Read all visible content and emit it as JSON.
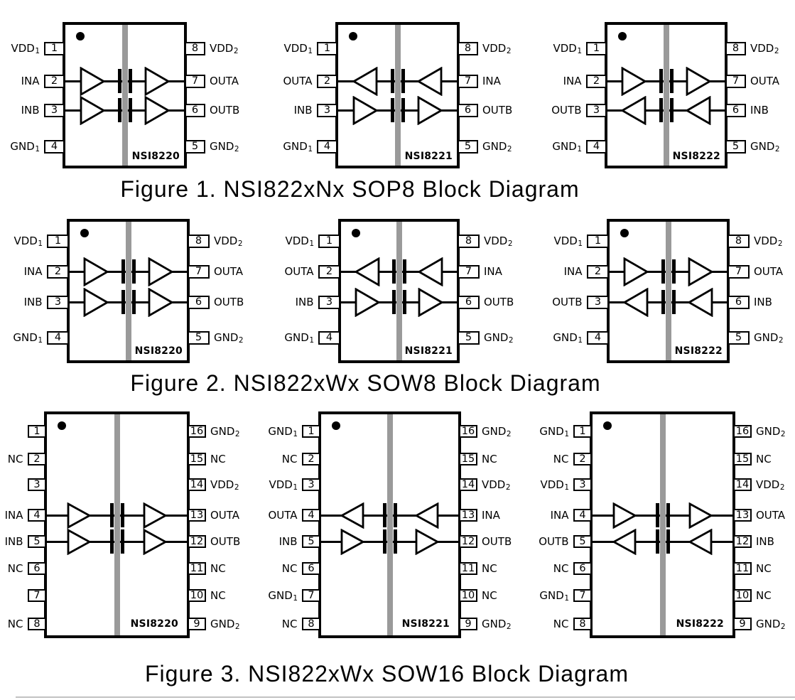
{
  "colors": {
    "line": "#000000",
    "barrier": "#9a9a9a",
    "faint_rule": "#c2c2c2",
    "background": "#ffffff"
  },
  "figures": [
    {
      "caption": "Figure 1. NSI822xNx SOP8 Block Diagram",
      "chips": [
        {
          "name": "NSI8220",
          "left_pins": [
            {
              "label": "VDD",
              "sub": "1",
              "num": "1"
            },
            {
              "label": "INA",
              "sub": "",
              "num": "2"
            },
            {
              "label": "INB",
              "sub": "",
              "num": "3"
            },
            {
              "label": "GND",
              "sub": "1",
              "num": "4"
            }
          ],
          "right_pins": [
            {
              "label": "VDD",
              "sub": "2",
              "num": "8"
            },
            {
              "label": "OUTA",
              "sub": "",
              "num": "7"
            },
            {
              "label": "OUTB",
              "sub": "",
              "num": "6"
            },
            {
              "label": "GND",
              "sub": "2",
              "num": "5"
            }
          ],
          "channels": [
            "right",
            "right"
          ]
        },
        {
          "name": "NSI8221",
          "left_pins": [
            {
              "label": "VDD",
              "sub": "1",
              "num": "1"
            },
            {
              "label": "OUTA",
              "sub": "",
              "num": "2"
            },
            {
              "label": "INB",
              "sub": "",
              "num": "3"
            },
            {
              "label": "GND",
              "sub": "1",
              "num": "4"
            }
          ],
          "right_pins": [
            {
              "label": "VDD",
              "sub": "2",
              "num": "8"
            },
            {
              "label": "INA",
              "sub": "",
              "num": "7"
            },
            {
              "label": "OUTB",
              "sub": "",
              "num": "6"
            },
            {
              "label": "GND",
              "sub": "2",
              "num": "5"
            }
          ],
          "channels": [
            "left",
            "right"
          ]
        },
        {
          "name": "NSI8222",
          "left_pins": [
            {
              "label": "VDD",
              "sub": "1",
              "num": "1"
            },
            {
              "label": "INA",
              "sub": "",
              "num": "2"
            },
            {
              "label": "OUTB",
              "sub": "",
              "num": "3"
            },
            {
              "label": "GND",
              "sub": "1",
              "num": "4"
            }
          ],
          "right_pins": [
            {
              "label": "VDD",
              "sub": "2",
              "num": "8"
            },
            {
              "label": "OUTA",
              "sub": "",
              "num": "7"
            },
            {
              "label": "INB",
              "sub": "",
              "num": "6"
            },
            {
              "label": "GND",
              "sub": "2",
              "num": "5"
            }
          ],
          "channels": [
            "right",
            "left"
          ]
        }
      ]
    },
    {
      "caption": "Figure 2. NSI822xWx SOW8 Block Diagram",
      "chips": [
        {
          "name": "NSI8220",
          "left_pins": [
            {
              "label": "VDD",
              "sub": "1",
              "num": "1"
            },
            {
              "label": "INA",
              "sub": "",
              "num": "2"
            },
            {
              "label": "INB",
              "sub": "",
              "num": "3"
            },
            {
              "label": "GND",
              "sub": "1",
              "num": "4"
            }
          ],
          "right_pins": [
            {
              "label": "VDD",
              "sub": "2",
              "num": "8"
            },
            {
              "label": "OUTA",
              "sub": "",
              "num": "7"
            },
            {
              "label": "OUTB",
              "sub": "",
              "num": "6"
            },
            {
              "label": "GND",
              "sub": "2",
              "num": "5"
            }
          ],
          "channels": [
            "right",
            "right"
          ]
        },
        {
          "name": "NSI8221",
          "left_pins": [
            {
              "label": "VDD",
              "sub": "1",
              "num": "1"
            },
            {
              "label": "OUTA",
              "sub": "",
              "num": "2"
            },
            {
              "label": "INB",
              "sub": "",
              "num": "3"
            },
            {
              "label": "GND",
              "sub": "1",
              "num": "4"
            }
          ],
          "right_pins": [
            {
              "label": "VDD",
              "sub": "2",
              "num": "8"
            },
            {
              "label": "INA",
              "sub": "",
              "num": "7"
            },
            {
              "label": "OUTB",
              "sub": "",
              "num": "6"
            },
            {
              "label": "GND",
              "sub": "2",
              "num": "5"
            }
          ],
          "channels": [
            "left",
            "right"
          ]
        },
        {
          "name": "NSI8222",
          "left_pins": [
            {
              "label": "VDD",
              "sub": "1",
              "num": "1"
            },
            {
              "label": "INA",
              "sub": "",
              "num": "2"
            },
            {
              "label": "OUTB",
              "sub": "",
              "num": "3"
            },
            {
              "label": "GND",
              "sub": "1",
              "num": "4"
            }
          ],
          "right_pins": [
            {
              "label": "VDD",
              "sub": "2",
              "num": "8"
            },
            {
              "label": "OUTA",
              "sub": "",
              "num": "7"
            },
            {
              "label": "INB",
              "sub": "",
              "num": "6"
            },
            {
              "label": "GND",
              "sub": "2",
              "num": "5"
            }
          ],
          "channels": [
            "right",
            "left"
          ]
        }
      ]
    },
    {
      "caption": "Figure 3. NSI822xWx SOW16 Block Diagram",
      "chips": [
        {
          "name": "NSI8220",
          "left_pins": [
            {
              "label": "",
              "sub": "",
              "num": "1"
            },
            {
              "label": "NC",
              "sub": "",
              "num": "2"
            },
            {
              "label": "",
              "sub": "",
              "num": "3"
            },
            {
              "label": "INA",
              "sub": "",
              "num": "4"
            },
            {
              "label": "INB",
              "sub": "",
              "num": "5"
            },
            {
              "label": "NC",
              "sub": "",
              "num": "6"
            },
            {
              "label": "",
              "sub": "",
              "num": "7"
            },
            {
              "label": "NC",
              "sub": "",
              "num": "8"
            }
          ],
          "right_pins": [
            {
              "label": "GND",
              "sub": "2",
              "num": "16"
            },
            {
              "label": "NC",
              "sub": "",
              "num": "15"
            },
            {
              "label": "VDD",
              "sub": "2",
              "num": "14"
            },
            {
              "label": "OUTA",
              "sub": "",
              "num": "13"
            },
            {
              "label": "OUTB",
              "sub": "",
              "num": "12"
            },
            {
              "label": "NC",
              "sub": "",
              "num": "11"
            },
            {
              "label": "NC",
              "sub": "",
              "num": "10"
            },
            {
              "label": "GND",
              "sub": "2",
              "num": "9"
            }
          ],
          "channels": [
            "right",
            "right"
          ]
        },
        {
          "name": "NSI8221",
          "left_pins": [
            {
              "label": "GND",
              "sub": "1",
              "num": "1"
            },
            {
              "label": "NC",
              "sub": "",
              "num": "2"
            },
            {
              "label": "VDD",
              "sub": "1",
              "num": "3"
            },
            {
              "label": "OUTA",
              "sub": "",
              "num": "4"
            },
            {
              "label": "INB",
              "sub": "",
              "num": "5"
            },
            {
              "label": "NC",
              "sub": "",
              "num": "6"
            },
            {
              "label": "GND",
              "sub": "1",
              "num": "7"
            },
            {
              "label": "NC",
              "sub": "",
              "num": "8"
            }
          ],
          "right_pins": [
            {
              "label": "GND",
              "sub": "2",
              "num": "16"
            },
            {
              "label": "NC",
              "sub": "",
              "num": "15"
            },
            {
              "label": "VDD",
              "sub": "2",
              "num": "14"
            },
            {
              "label": "INA",
              "sub": "",
              "num": "13"
            },
            {
              "label": "OUTB",
              "sub": "",
              "num": "12"
            },
            {
              "label": "NC",
              "sub": "",
              "num": "11"
            },
            {
              "label": "NC",
              "sub": "",
              "num": "10"
            },
            {
              "label": "GND",
              "sub": "2",
              "num": "9"
            }
          ],
          "channels": [
            "left",
            "right"
          ]
        },
        {
          "name": "NSI8222",
          "left_pins": [
            {
              "label": "GND",
              "sub": "1",
              "num": "1"
            },
            {
              "label": "NC",
              "sub": "",
              "num": "2"
            },
            {
              "label": "VDD",
              "sub": "1",
              "num": "3"
            },
            {
              "label": "INA",
              "sub": "",
              "num": "4"
            },
            {
              "label": "OUTB",
              "sub": "",
              "num": "5"
            },
            {
              "label": "NC",
              "sub": "",
              "num": "6"
            },
            {
              "label": "GND",
              "sub": "1",
              "num": "7"
            },
            {
              "label": "NC",
              "sub": "",
              "num": "8"
            }
          ],
          "right_pins": [
            {
              "label": "GND",
              "sub": "2",
              "num": "16"
            },
            {
              "label": "NC",
              "sub": "",
              "num": "15"
            },
            {
              "label": "VDD",
              "sub": "2",
              "num": "14"
            },
            {
              "label": "OUTA",
              "sub": "",
              "num": "13"
            },
            {
              "label": "INB",
              "sub": "",
              "num": "12"
            },
            {
              "label": "NC",
              "sub": "",
              "num": "11"
            },
            {
              "label": "NC",
              "sub": "",
              "num": "10"
            },
            {
              "label": "GND",
              "sub": "2",
              "num": "9"
            }
          ],
          "channels": [
            "right",
            "left"
          ]
        }
      ]
    }
  ]
}
